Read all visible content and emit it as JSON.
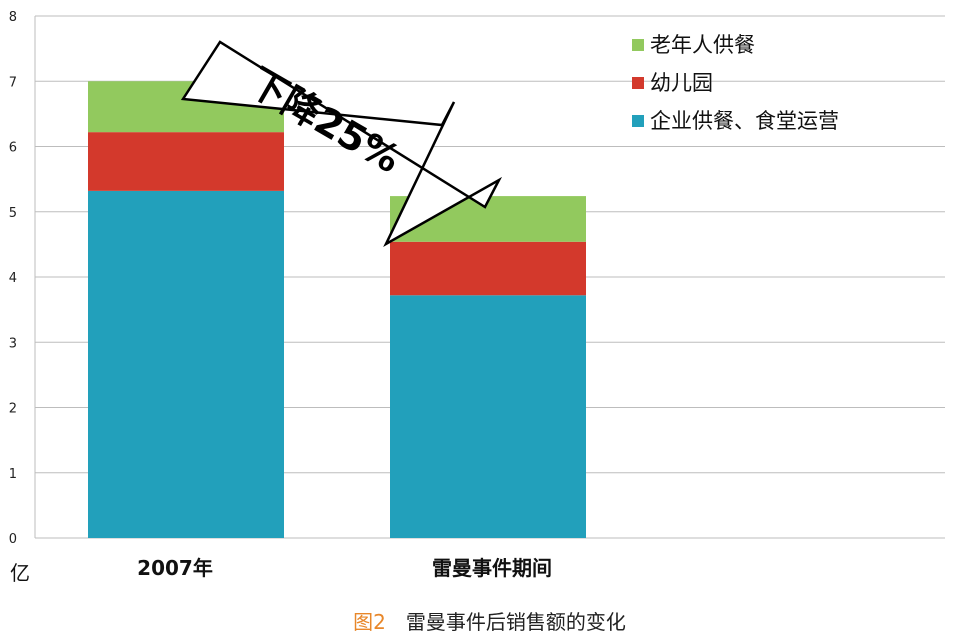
{
  "caption": {
    "figure_number": "图2",
    "text": "雷曼事件后销售额的变化"
  },
  "chart_data": {
    "type": "bar",
    "stacked": true,
    "categories": [
      "2007年",
      "雷曼事件期间"
    ],
    "series": [
      {
        "name": "企业供餐、食堂运营",
        "values": [
          5.32,
          3.72
        ],
        "color": "#22a0bb"
      },
      {
        "name": "幼儿园",
        "values": [
          0.9,
          0.82
        ],
        "color": "#d3392c"
      },
      {
        "name": "老年人供餐",
        "values": [
          0.78,
          0.7
        ],
        "color": "#92c95e"
      }
    ],
    "ylim": [
      0,
      8
    ],
    "yticks": [
      0,
      1,
      2,
      3,
      4,
      5,
      6,
      7,
      8
    ],
    "yunit": "亿",
    "legend_position": "top-right",
    "legend_order": [
      "老年人供餐",
      "幼儿园",
      "企业供餐、食堂运营"
    ],
    "annotation": {
      "text": "下降25%"
    },
    "grid": true
  }
}
